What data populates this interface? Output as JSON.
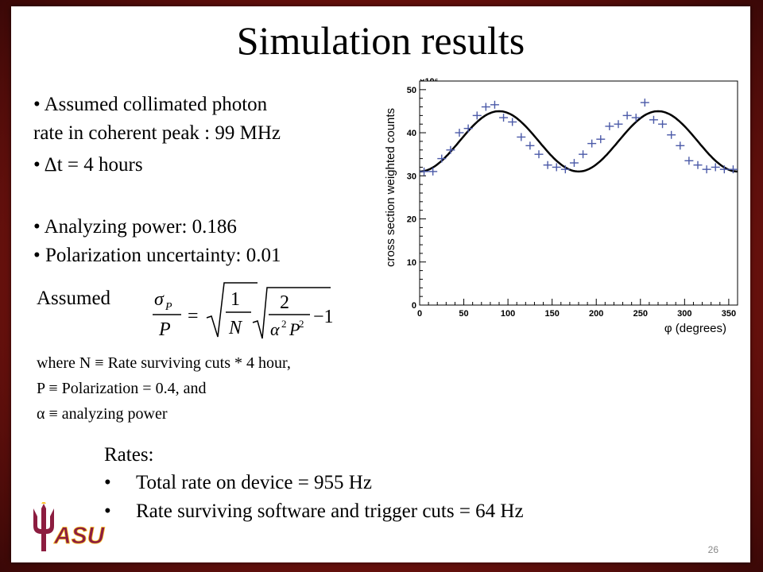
{
  "slide": {
    "title": "Simulation results",
    "bullets": [
      "Assumed  collimated photon",
      "rate in coherent peak : 99 MHz",
      "Δt = 4 hours",
      "Analyzing  power: 0.186",
      "Polarization uncertainty:  0.01"
    ],
    "assumed_label": "Assumed",
    "formula": {
      "lhs_num": "σ",
      "lhs_num_sub": "P",
      "lhs_den": "P",
      "equals": "=",
      "one": "1",
      "N": "N",
      "two": "2",
      "alpha": "α",
      "sq": "2",
      "P": "P",
      "minus_one": "−1"
    },
    "definitions": [
      "where N ≡ Rate surviving cuts * 4 hour,",
      "P ≡ Polarization = 0.4, and",
      "α ≡ analyzing power"
    ],
    "rates_heading": "Rates:",
    "rates": [
      "Total rate on device = 955 Hz",
      "Rate surviving  software and trigger cuts = 64 Hz"
    ],
    "logo_text": "ASU",
    "page_number": "26"
  },
  "chart_data": {
    "type": "scatter",
    "xlabel": "φ (degrees)",
    "ylabel": "cross section weighted counts",
    "y_multiplier": "×10⁶",
    "xlim": [
      0,
      360
    ],
    "ylim": [
      0,
      52
    ],
    "x_ticks": [
      0,
      50,
      100,
      150,
      200,
      250,
      300,
      350
    ],
    "y_ticks": [
      0,
      10,
      20,
      30,
      40,
      50
    ],
    "series": [
      {
        "style": "crosses",
        "color": "#4b5aa8",
        "x": [
          5,
          15,
          25,
          35,
          45,
          55,
          65,
          75,
          85,
          95,
          105,
          115,
          125,
          135,
          145,
          155,
          165,
          175,
          185,
          195,
          205,
          215,
          225,
          235,
          245,
          255,
          265,
          275,
          285,
          295,
          305,
          315,
          325,
          335,
          345,
          355
        ],
        "y": [
          31,
          31,
          34,
          36,
          40,
          41,
          44,
          46,
          46.5,
          43.5,
          42.5,
          39,
          37,
          35,
          32.5,
          32,
          31.5,
          33,
          35,
          37.5,
          38.5,
          41.5,
          42,
          44,
          43.5,
          47,
          43,
          42,
          39.5,
          37,
          33.5,
          32.5,
          31.5,
          32,
          31.5,
          31.5
        ]
      },
      {
        "style": "line",
        "color": "#000000",
        "function": "38 + 7*cos(2*(phi - 90°))"
      }
    ],
    "grid": false
  }
}
